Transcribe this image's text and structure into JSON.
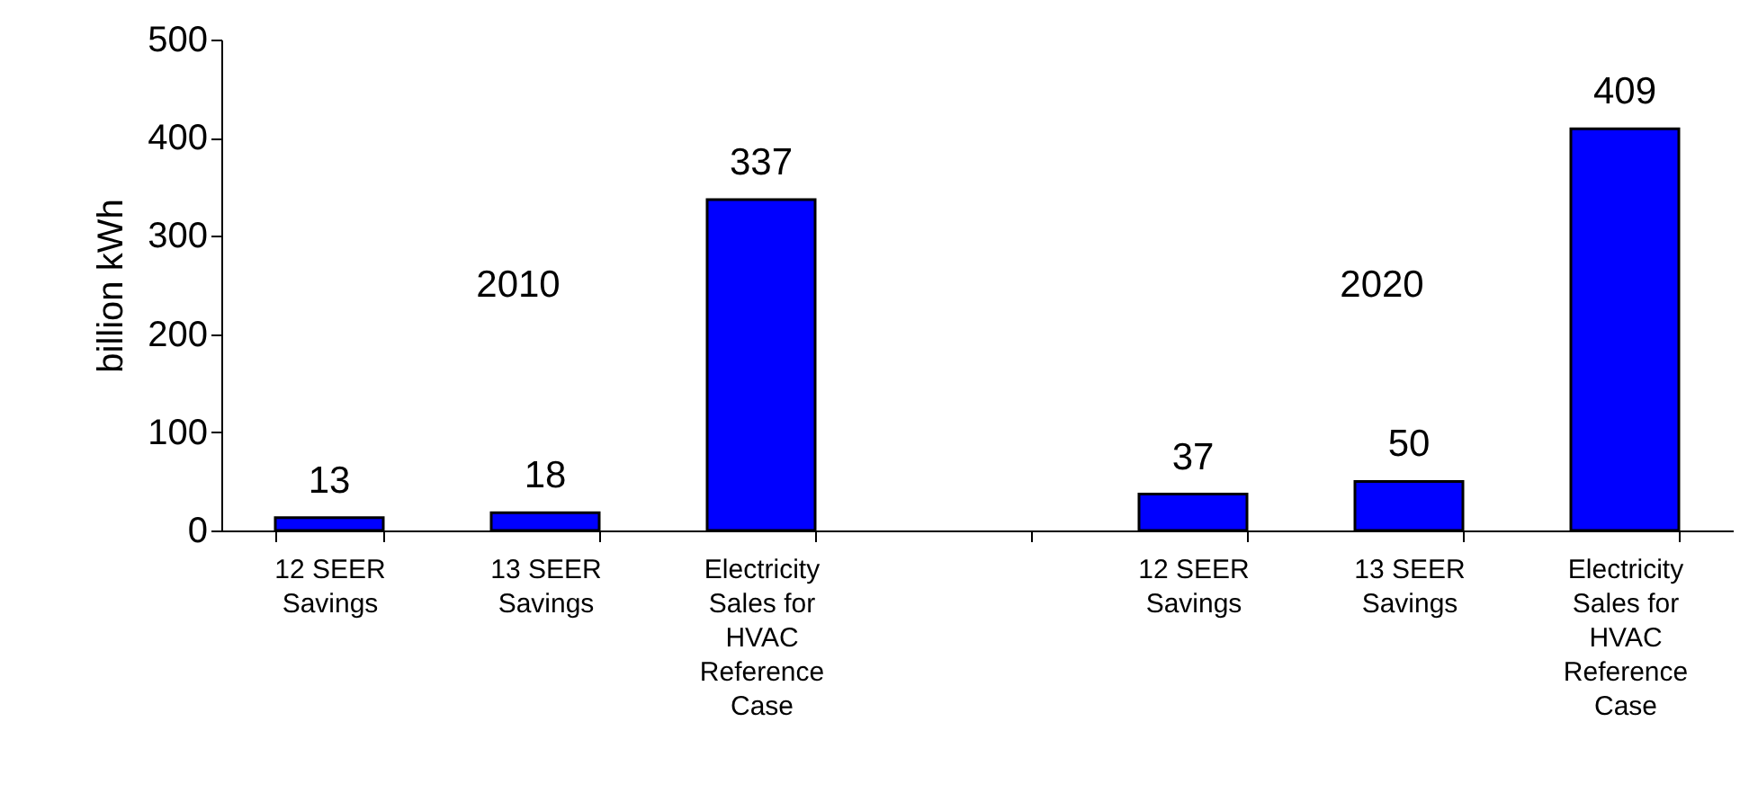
{
  "chart_data": {
    "type": "bar",
    "ylabel": "billion kWh",
    "categories": [
      "12 SEER Savings",
      "13 SEER Savings",
      "Electricity Sales for HVAC Reference Case",
      null,
      "12 SEER Savings",
      "13 SEER Savings",
      "Electricity Sales for HVAC Reference Case"
    ],
    "values": [
      13,
      18,
      337,
      null,
      37,
      50,
      409
    ],
    "color": "#0000ff",
    "ylim": [
      0,
      500
    ],
    "yticks": [
      0,
      100,
      200,
      300,
      400,
      500
    ],
    "grid": false,
    "data_labels": true,
    "annotations": [
      "2010",
      "2020"
    ]
  }
}
